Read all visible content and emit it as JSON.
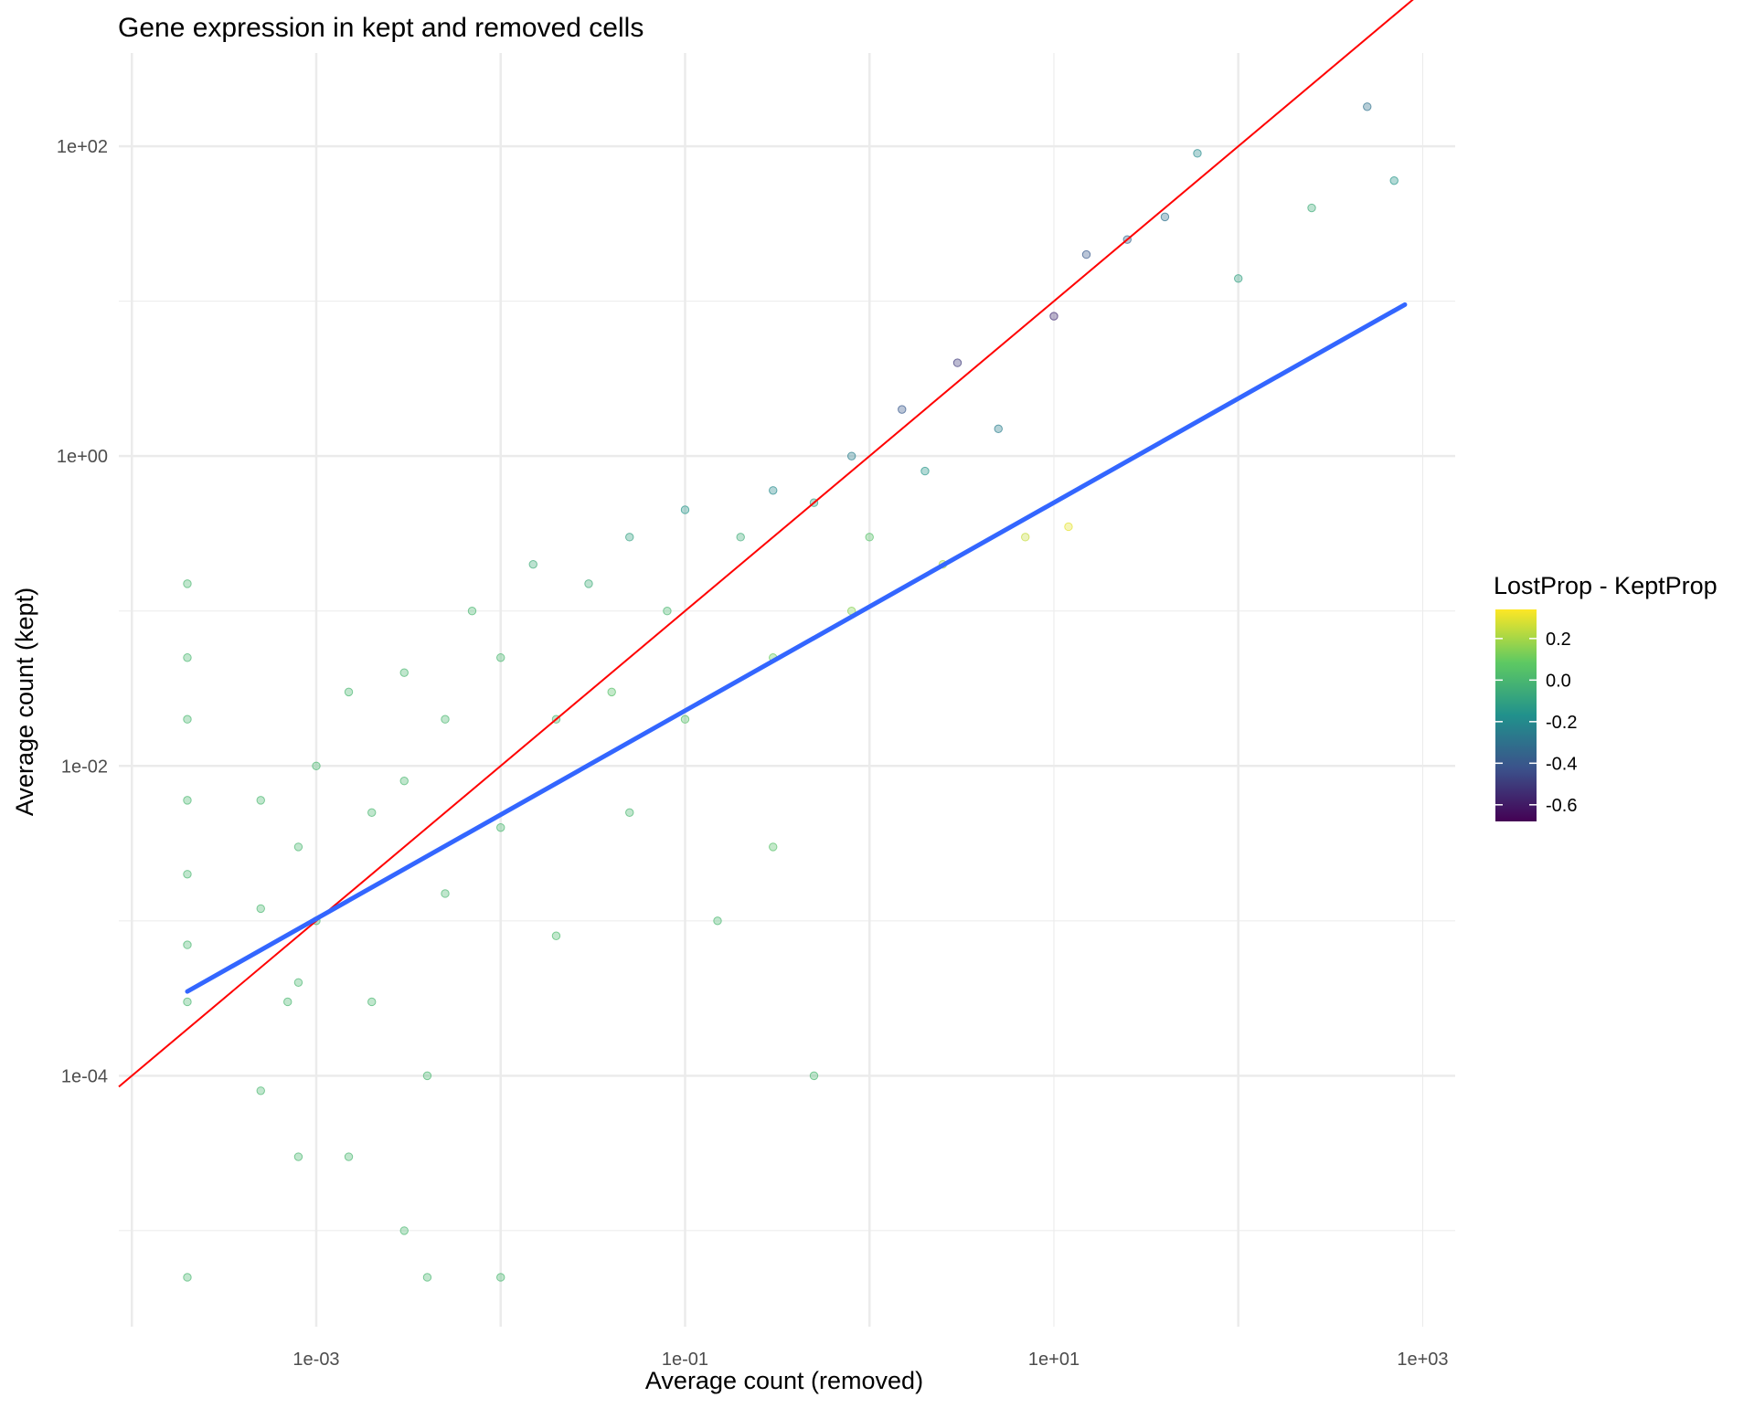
{
  "chart_data": {
    "type": "scatter",
    "title": "Gene expression in kept and removed cells",
    "xlabel": "Average count (removed)",
    "ylabel": "Average count (kept)",
    "x_scale": "log10",
    "y_scale": "log10",
    "xlim": [
      8.5e-05,
      1500
    ],
    "ylim": [
      2.4e-06,
      400
    ],
    "x_ticks": [
      {
        "value": 0.001,
        "label": "1e-03"
      },
      {
        "value": 0.1,
        "label": "1e-01"
      },
      {
        "value": 10,
        "label": "1e+01"
      },
      {
        "value": 1000,
        "label": "1e+03"
      }
    ],
    "y_ticks": [
      {
        "value": 0.0001,
        "label": "1e-04"
      },
      {
        "value": 0.01,
        "label": "1e-02"
      },
      {
        "value": 1,
        "label": "1e+00"
      },
      {
        "value": 100,
        "label": "1e+02"
      }
    ],
    "grid": true,
    "legend": {
      "title": "LostProp - KeptProp",
      "position": "right",
      "type": "colorbar",
      "palette": "viridis",
      "range": [
        -0.68,
        0.34
      ],
      "ticks": [
        {
          "value": 0.2,
          "label": "0.2"
        },
        {
          "value": 0.0,
          "label": "0.0"
        },
        {
          "value": -0.2,
          "label": "-0.2"
        },
        {
          "value": -0.4,
          "label": "-0.4"
        },
        {
          "value": -0.6,
          "label": "-0.6"
        }
      ]
    },
    "reference_line": {
      "name": "y = x",
      "color": "#ff0000",
      "slope": 1,
      "intercept": 0
    },
    "fit_line": {
      "color": "#3366ff",
      "x": [
        0.0002,
        800
      ],
      "y": [
        0.00035,
        9.5
      ]
    },
    "colors": {
      "typical": "#5ec962",
      "high_diff": "#35b779",
      "low_end": "#fde725",
      "high_end": "#3b528b"
    },
    "points": [
      [
        0.0002,
        0.0007,
        0.0
      ],
      [
        0.0002,
        0.002,
        0.0
      ],
      [
        0.0002,
        0.006,
        0.0
      ],
      [
        0.0002,
        0.02,
        0.0
      ],
      [
        0.0002,
        0.05,
        0.0
      ],
      [
        0.0002,
        0.15,
        0.0
      ],
      [
        0.0002,
        0.0003,
        0.0
      ],
      [
        0.0002,
        5e-06,
        0.0
      ],
      [
        0.0005,
        0.006,
        0.0
      ],
      [
        0.0005,
        0.0012,
        0.0
      ],
      [
        0.0005,
        8e-05,
        0.0
      ],
      [
        0.0008,
        0.003,
        0.0
      ],
      [
        0.0008,
        0.0004,
        0.0
      ],
      [
        0.0008,
        3e-05,
        0.0
      ],
      [
        0.001,
        0.01,
        0.0
      ],
      [
        0.001,
        0.001,
        0.0
      ],
      [
        0.0015,
        0.03,
        0.0
      ],
      [
        0.0015,
        3e-05,
        0.0
      ],
      [
        0.002,
        0.005,
        0.0
      ],
      [
        0.002,
        0.0003,
        0.0
      ],
      [
        0.003,
        0.04,
        0.0
      ],
      [
        0.003,
        0.008,
        0.0
      ],
      [
        0.003,
        1e-05,
        0.0
      ],
      [
        0.004,
        5e-06,
        0.0
      ],
      [
        0.005,
        0.02,
        0.0
      ],
      [
        0.005,
        0.0015,
        0.0
      ],
      [
        0.007,
        0.1,
        0.0
      ],
      [
        0.01,
        0.05,
        0.0
      ],
      [
        0.01,
        0.004,
        0.0
      ],
      [
        0.01,
        5e-06,
        0.0
      ],
      [
        0.015,
        0.2,
        -0.05
      ],
      [
        0.02,
        0.02,
        0.0
      ],
      [
        0.03,
        0.15,
        -0.05
      ],
      [
        0.04,
        0.03,
        0.05
      ],
      [
        0.05,
        0.3,
        -0.1
      ],
      [
        0.05,
        0.005,
        0.0
      ],
      [
        0.08,
        0.1,
        0.0
      ],
      [
        0.1,
        0.45,
        -0.15
      ],
      [
        0.1,
        0.02,
        0.05
      ],
      [
        0.15,
        0.001,
        0.0
      ],
      [
        0.2,
        0.3,
        -0.05
      ],
      [
        0.3,
        0.6,
        -0.2
      ],
      [
        0.3,
        0.05,
        0.1
      ],
      [
        0.5,
        0.5,
        -0.1
      ],
      [
        0.8,
        1.0,
        -0.25
      ],
      [
        0.8,
        0.1,
        0.15
      ],
      [
        1.0,
        0.3,
        0.05
      ],
      [
        1.5,
        2.0,
        -0.4
      ],
      [
        2.0,
        0.8,
        -0.15
      ],
      [
        2.5,
        0.2,
        0.2
      ],
      [
        3.0,
        4.0,
        -0.5
      ],
      [
        5.0,
        1.5,
        -0.25
      ],
      [
        7.0,
        0.3,
        0.25
      ],
      [
        10,
        8.0,
        -0.55
      ],
      [
        12,
        0.35,
        0.3
      ],
      [
        15,
        20,
        -0.4
      ],
      [
        25,
        25,
        -0.35
      ],
      [
        40,
        35,
        -0.3
      ],
      [
        60,
        90,
        -0.2
      ],
      [
        100,
        14,
        -0.1
      ],
      [
        250,
        40,
        -0.05
      ],
      [
        500,
        180,
        -0.3
      ],
      [
        700,
        60,
        -0.15
      ],
      [
        0.0007,
        0.0003,
        0.0
      ],
      [
        0.004,
        0.0001,
        0.0
      ],
      [
        0.02,
        0.0008,
        0.02
      ],
      [
        0.3,
        0.003,
        0.05
      ],
      [
        0.5,
        0.0001,
        0.0
      ]
    ]
  }
}
